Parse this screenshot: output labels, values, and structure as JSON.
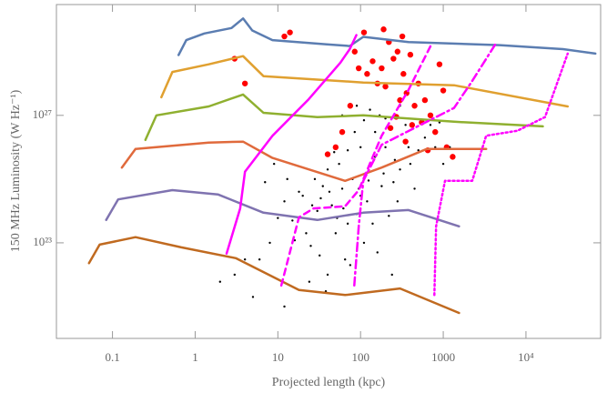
{
  "chart_data": {
    "type": "scatter",
    "xlabel": "Projected length (kpc)",
    "ylabel": "150 MHz Luminosity (W Hz⁻¹)",
    "xscale": "log",
    "yscale": "log",
    "xlim": [
      0.021,
      80000
    ],
    "ylim": [
      1e+20,
      3e+30
    ],
    "xticks": [
      0.1,
      1,
      10,
      100,
      1000,
      {
        "value": 10000,
        "label": "10⁴"
      }
    ],
    "yticks": [
      {
        "value": 1e+23,
        "label": "10²³"
      },
      {
        "value": 1e+27,
        "label": "10²⁷"
      }
    ],
    "scatter": [
      {
        "color": "#000000",
        "x": [
          20,
          30,
          15,
          40,
          60,
          25,
          80,
          100,
          150,
          200,
          300,
          50,
          12,
          8,
          6,
          35,
          45,
          70,
          90,
          120,
          180,
          250,
          400,
          500,
          600,
          700,
          800,
          350,
          150,
          100,
          70,
          55,
          28,
          18,
          10,
          22,
          32,
          40,
          65,
          110,
          140,
          220,
          280,
          450,
          1000,
          1200,
          900,
          60,
          90,
          130,
          200,
          300,
          3,
          4,
          2,
          7,
          9,
          13,
          16,
          24,
          38,
          12,
          5,
          75,
          160,
          240,
          48,
          85,
          110,
          170,
          26,
          33,
          42,
          52,
          62,
          95,
          125,
          190,
          260,
          380
        ],
        "values": [
          3e+24,
          1e+24,
          5e+23,
          2e+25,
          5e+24,
          8e+22,
          1e+25,
          3e+24,
          5e+25,
          1e+26,
          2e+25,
          2e+23,
          2e+24,
          1e+23,
          3e+22,
          6e+24,
          1.5e+24,
          4e+23,
          8e+23,
          2e+24,
          6e+24,
          8e+24,
          3e+25,
          8e+25,
          2e+26,
          5e+26,
          1e+26,
          5e+26,
          3e+26,
          1e+26,
          8e+25,
          3e+25,
          1e+25,
          4e+24,
          6e+23,
          2e+23,
          4e+22,
          1e+22,
          3e+22,
          1e+23,
          4e+23,
          7e+23,
          2e+24,
          5e+24,
          3e+25,
          1e+26,
          6e+26,
          1e+27,
          2e+27,
          1.5e+27,
          8e+26,
          2e+27,
          1e+22,
          3e+22,
          6e+21,
          8e+24,
          3e+25,
          1e+25,
          1.2e+23,
          6e+21,
          3e+21,
          1e+21,
          2e+21,
          2e+22,
          5e+22,
          1e+22,
          7e+25,
          3e+26,
          7e+26,
          1e+27,
          1.5e+24,
          2.5e+24,
          4e+24,
          6e+23,
          1.2e+24,
          5e+24,
          9e+24,
          1.5e+25,
          4e+25,
          1e+26
        ],
        "size": 1.2
      },
      {
        "color": "#ff0000",
        "x": [
          120,
          140,
          160,
          180,
          200,
          220,
          250,
          280,
          300,
          330,
          360,
          400,
          450,
          500,
          550,
          600,
          700,
          800,
          900,
          1100,
          1300,
          95,
          85,
          110,
          75,
          60,
          50,
          40,
          3,
          4,
          12,
          14,
          230,
          270,
          350,
          420,
          650,
          1000,
          190,
          320
        ],
        "values": [
          2e+28,
          5e+28,
          1e+28,
          3e+28,
          8e+27,
          2e+29,
          6e+28,
          1e+29,
          3e+27,
          2e+28,
          5e+27,
          8e+28,
          2e+27,
          1e+28,
          6e+26,
          3e+27,
          1e+27,
          3e+26,
          4e+28,
          1e+26,
          5e+25,
          3e+28,
          1e+29,
          4e+29,
          2e+27,
          3e+26,
          1e+26,
          6e+25,
          6e+28,
          1e+28,
          3e+29,
          4e+29,
          4e+26,
          9e+26,
          1.5e+26,
          5e+26,
          8e+25,
          6e+27,
          5e+29,
          3e+29
        ],
        "size": 3.2
      }
    ],
    "lines": [
      {
        "color": "#5b7db1",
        "dash": "solid",
        "x": [
          0.63,
          0.78,
          1.29,
          2.75,
          3.8,
          4.9,
          8.6,
          39,
          74,
          108,
          380,
          4800,
          28000,
          69000
        ],
        "values": [
          7.8e+28,
          2.3e+29,
          3.7e+29,
          5.5e+29,
          1.1e+30,
          4.6e+29,
          2.3e+29,
          1.7e+29,
          1.5e+29,
          2.9e+29,
          2e+29,
          1.6e+29,
          1.2e+29,
          8.7e+28
        ]
      },
      {
        "color": "#e0a030",
        "dash": "solid",
        "x": [
          0.39,
          0.53,
          1.46,
          3.8,
          6.7,
          108,
          1350,
          32000
        ],
        "values": [
          3.7e+27,
          2.3e+28,
          4e+28,
          7.2e+28,
          1.7e+28,
          1.07e+28,
          8.8e+27,
          1.9e+27
        ]
      },
      {
        "color": "#8fb030",
        "dash": "solid",
        "x": [
          0.25,
          0.34,
          1.46,
          3.8,
          6.7,
          30,
          108,
          1350,
          16000
        ],
        "values": [
          1.7e+26,
          1e+27,
          1.9e+27,
          4.5e+27,
          1.2e+27,
          8.8e+26,
          1e+27,
          6.3e+26,
          4.5e+26
        ]
      },
      {
        "color": "#e06a3c",
        "dash": "solid",
        "x": [
          0.13,
          0.19,
          1.46,
          3.8,
          8.6,
          65,
          180,
          630,
          3300
        ],
        "values": [
          2.3e+25,
          8.8e+25,
          1.4e+26,
          1.5e+26,
          4.6e+25,
          8.8e+24,
          2.3e+25,
          8.8e+25,
          8.8e+25
        ]
      },
      {
        "color": "#7f73b0",
        "dash": "solid",
        "x": [
          0.084,
          0.117,
          0.53,
          1.88,
          6.7,
          30,
          108,
          380,
          1550
        ],
        "values": [
          5.2e+23,
          2.3e+24,
          4.5e+24,
          3.3e+24,
          8.8e+23,
          5.2e+23,
          8.8e+23,
          1.07e+24,
          3.3e+23
        ]
      },
      {
        "color": "#c06a20",
        "dash": "solid",
        "x": [
          0.052,
          0.07,
          0.19,
          0.68,
          3.1,
          18,
          65,
          300,
          1550
        ],
        "values": [
          2.3e+22,
          8.8e+22,
          1.5e+23,
          7.2e+22,
          3.3e+22,
          3.3e+21,
          2.3e+21,
          3.7e+21,
          6.3e+20
        ]
      },
      {
        "color": "#ff00ff",
        "dash": "solid",
        "x": [
          2.4,
          3.5,
          4,
          8.6,
          23.6,
          57,
          74,
          89
        ],
        "values": [
          4.6e+22,
          1.2e+24,
          1.7e+25,
          2.3e+26,
          3.2e+27,
          4.5e+28,
          1.2e+29,
          3.3e+29
        ]
      },
      {
        "color": "#ff00ff",
        "dash": "dashed",
        "x": [
          11,
          18,
          27,
          65,
          95,
          180,
          380,
          720
        ],
        "values": [
          4.6e+21,
          6.3e+23,
          1.2e+24,
          1.4e+24,
          4.5e+24,
          2.3e+26,
          6.3e+27,
          1.7e+29
        ]
      },
      {
        "color": "#ff00ff",
        "dash": "dashdot",
        "x": [
          84,
          95,
          108,
          180,
          490,
          1350,
          2240,
          4260
        ],
        "values": [
          4.6e+21,
          3.3e+23,
          8.8e+24,
          1.2e+26,
          4.5e+26,
          1.7e+27,
          1.2e+28,
          1.7e+29
        ]
      },
      {
        "color": "#ff00ff",
        "dash": "dotted",
        "x": [
          780,
          820,
          1050,
          2240,
          3300,
          7900,
          17000,
          32000
        ],
        "values": [
          2.3e+21,
          3.3e+23,
          8.8e+24,
          8.8e+24,
          2.3e+26,
          3.3e+26,
          8.8e+26,
          8.7e+28
        ]
      }
    ]
  }
}
